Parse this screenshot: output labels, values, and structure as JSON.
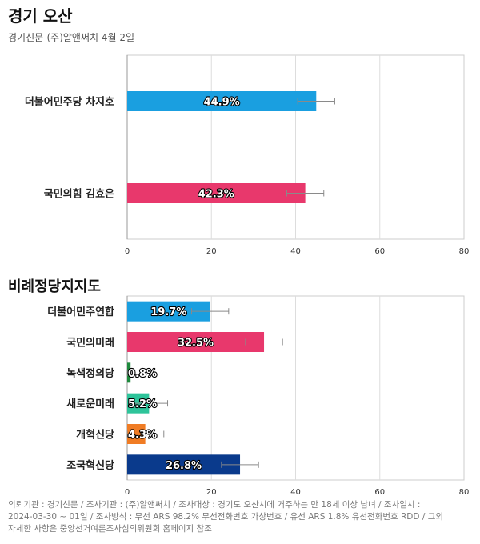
{
  "header": {
    "title": "경기 오산",
    "subtitle": "경기신문-(주)알앤써치 4월 2일"
  },
  "section2_title": "비례정당지지도",
  "footer": {
    "line1": "의뢰기관 : 경기신문 / 조사기관 : (주)알앤써치 / 조사대상 : 경기도 오산시에 거주하는 만 18세 이상 남녀 / 조사일시 :",
    "line2": "2024-03-30 ~ 01일 / 조사방식 : 무선 ARS 98.2% 무선전화번호 가상번호 / 유선 ARS 1.8% 유선전화번호 RDD / 그외",
    "line3": "자세한 사항은 중앙선거여론조사심의위원회 홈페이지 참조"
  },
  "chart_data": [
    {
      "type": "bar",
      "orientation": "horizontal",
      "title": "경기 오산",
      "subtitle": "경기신문-(주)알앤써치 4월 2일",
      "categories": [
        "더불어민주당 차지호",
        "국민의힘 김효은"
      ],
      "values": [
        44.9,
        42.3
      ],
      "value_labels": [
        "44.9%",
        "42.3%"
      ],
      "error_bars": [
        [
          40.5,
          49.3
        ],
        [
          37.9,
          46.7
        ]
      ],
      "colors": [
        "#1a9fe0",
        "#e8386c"
      ],
      "xlim": [
        0,
        80
      ],
      "xticks": [
        0,
        20,
        40,
        60,
        80
      ],
      "grid": true
    },
    {
      "type": "bar",
      "orientation": "horizontal",
      "title": "비례정당지지도",
      "categories": [
        "더불어민주연합",
        "국민의미래",
        "녹색정의당",
        "새로운미래",
        "개혁신당",
        "조국혁신당"
      ],
      "values": [
        19.7,
        32.5,
        0.8,
        5.2,
        4.3,
        26.8
      ],
      "value_labels": [
        "19.7%",
        "32.5%",
        "0.8%",
        "5.2%",
        "4.3%",
        "26.8%"
      ],
      "error_bars": [
        [
          15.3,
          24.1
        ],
        [
          28.1,
          36.9
        ],
        [
          0.0,
          0.8
        ],
        [
          0.8,
          9.6
        ],
        [
          0.0,
          8.7
        ],
        [
          22.4,
          31.2
        ]
      ],
      "colors": [
        "#1a9fe0",
        "#e8386c",
        "#1e8a3c",
        "#2ec49a",
        "#f07c24",
        "#0a3a8c"
      ],
      "xlim": [
        0,
        80
      ],
      "xticks": [
        0,
        20,
        40,
        60,
        80
      ],
      "grid": true
    }
  ]
}
